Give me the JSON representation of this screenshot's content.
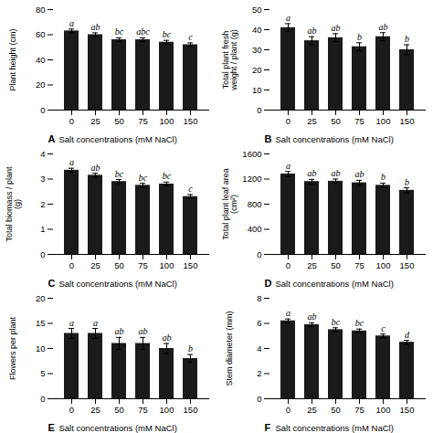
{
  "chart_data": [
    {
      "type": "bar",
      "title": "A",
      "ylabel": "Plant height (cm)",
      "xlabel": "Salt concentrations (mM NaCl)",
      "categories": [
        0,
        25,
        50,
        75,
        100,
        150
      ],
      "values": [
        63,
        60,
        56,
        56,
        54,
        52
      ],
      "errors": [
        1.5,
        1.5,
        1.5,
        1.5,
        1.5,
        1.5
      ],
      "letters": [
        "a",
        "ab",
        "bc",
        "abc",
        "bc",
        "c"
      ],
      "color": "#1a1a1a",
      "ylim": [
        0,
        80
      ],
      "yticks": [
        0,
        20,
        40,
        60,
        80
      ]
    },
    {
      "type": "bar",
      "title": "B",
      "ylabel": "Total plant fresh\nweight / plant (g)",
      "xlabel": "Salt concentrations (mM NaCl)",
      "categories": [
        0,
        25,
        50,
        75,
        100,
        150
      ],
      "values": [
        41,
        34.5,
        36,
        31.5,
        36.5,
        30
      ],
      "errors": [
        2.0,
        2.0,
        2.0,
        2.0,
        2.0,
        2.5
      ],
      "letters": [
        "a",
        "ab",
        "ab",
        "b",
        "ab",
        "b"
      ],
      "color": "#1a1a1a",
      "ylim": [
        0,
        50
      ],
      "yticks": [
        0,
        10,
        20,
        30,
        40,
        50
      ]
    },
    {
      "type": "bar",
      "title": "C",
      "ylabel": "Total biomass / plant\n(g)",
      "xlabel": "Salt concentrations (mM NaCl)",
      "categories": [
        0,
        25,
        50,
        75,
        100,
        150
      ],
      "values": [
        3.35,
        3.15,
        2.9,
        2.75,
        2.8,
        2.3
      ],
      "errors": [
        0.08,
        0.08,
        0.08,
        0.08,
        0.08,
        0.08
      ],
      "letters": [
        "a",
        "ab",
        "bc",
        "bc",
        "bc",
        "c"
      ],
      "color": "#1a1a1a",
      "ylim": [
        0,
        4
      ],
      "yticks": [
        0,
        1,
        2,
        3,
        4
      ]
    },
    {
      "type": "bar",
      "title": "D",
      "ylabel": "Total plant leaf area\n(cm²)",
      "xlabel": "Salt concentrations (mM NaCl)",
      "categories": [
        0,
        25,
        50,
        75,
        100,
        150
      ],
      "values": [
        1280,
        1160,
        1165,
        1140,
        1100,
        1020
      ],
      "errors": [
        40,
        35,
        35,
        40,
        35,
        40
      ],
      "letters": [
        "a",
        "ab",
        "ab",
        "ab",
        "b",
        "b"
      ],
      "color": "#1a1a1a",
      "ylim": [
        0,
        1600
      ],
      "yticks": [
        0,
        400,
        800,
        1200,
        1600
      ]
    },
    {
      "type": "bar",
      "title": "E",
      "ylabel": "Flowers per plant",
      "xlabel": "Salt concentrations (mM NaCl)",
      "categories": [
        0,
        25,
        50,
        75,
        100,
        150
      ],
      "values": [
        13,
        13,
        11,
        11,
        10,
        8
      ],
      "errors": [
        1.0,
        1.0,
        1.2,
        1.2,
        1.0,
        0.8
      ],
      "letters": [
        "a",
        "a",
        "ab",
        "ab",
        "ab",
        "b"
      ],
      "color": "#1a1a1a",
      "ylim": [
        0,
        20
      ],
      "yticks": [
        0,
        5,
        10,
        15,
        20
      ]
    },
    {
      "type": "bar",
      "title": "F",
      "ylabel": "Stem diameter (mm)",
      "xlabel": "Salt concentrations (mM NaCl)",
      "categories": [
        0,
        25,
        50,
        75,
        100,
        150
      ],
      "values": [
        6.2,
        5.9,
        5.5,
        5.4,
        5.0,
        4.5
      ],
      "errors": [
        0.15,
        0.15,
        0.15,
        0.15,
        0.15,
        0.15
      ],
      "letters": [
        "a",
        "ab",
        "bc",
        "bc",
        "c",
        "d"
      ],
      "color": "#1a1a1a",
      "ylim": [
        0,
        8
      ],
      "yticks": [
        0,
        2,
        4,
        6,
        8
      ]
    }
  ]
}
